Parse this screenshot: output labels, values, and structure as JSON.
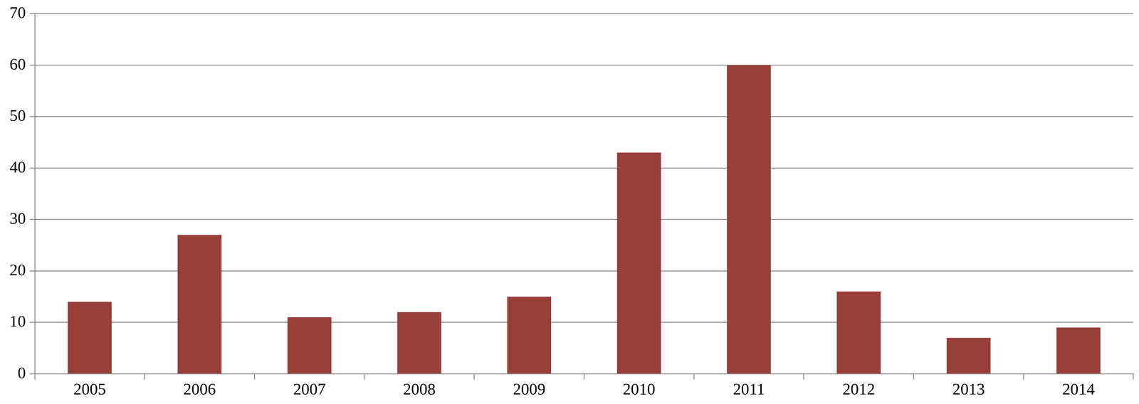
{
  "chart_data": {
    "type": "bar",
    "categories": [
      "2005",
      "2006",
      "2007",
      "2008",
      "2009",
      "2010",
      "2011",
      "2012",
      "2013",
      "2014"
    ],
    "values": [
      14,
      27,
      11,
      12,
      15,
      43,
      60,
      16,
      7,
      9
    ],
    "color": "#993f3a",
    "ylim": [
      0,
      70
    ],
    "yticks": [
      0,
      10,
      20,
      30,
      40,
      50,
      60,
      70
    ],
    "grid": true
  }
}
